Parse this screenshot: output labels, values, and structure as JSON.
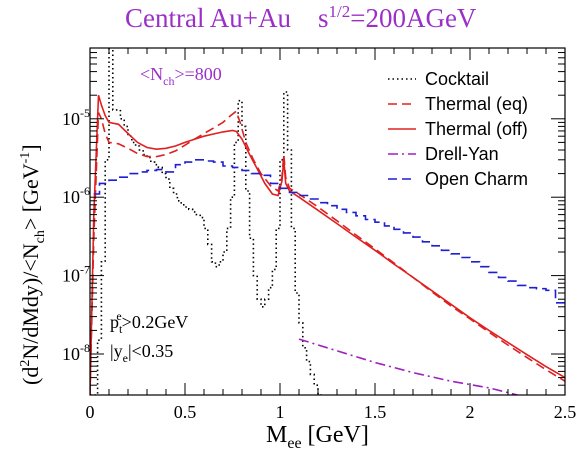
{
  "chart_data": {
    "type": "line",
    "title": {
      "prefix": "Central Au+Au",
      "sqrt_s_base": "s",
      "sqrt_s_exp": "1/2",
      "sqrt_s_value": "=200AGeV"
    },
    "xlabel": {
      "main": "M",
      "sub": "ee",
      "unit": " [GeV]"
    },
    "ylabel": {
      "p1": "(d",
      "sup1": "2",
      "p2": "N/dMdy)/<N",
      "sub1": "ch",
      "p3": "> [GeV",
      "sup2": "-1",
      "p4": "]"
    },
    "xlim": [
      0,
      2.5
    ],
    "ylim": [
      3e-09,
      8e-05
    ],
    "yscale": "log",
    "x_ticks": [
      {
        "v": 0,
        "label": "0"
      },
      {
        "v": 0.5,
        "label": "0.5"
      },
      {
        "v": 1,
        "label": "1"
      },
      {
        "v": 1.5,
        "label": "1.5"
      },
      {
        "v": 2,
        "label": "2"
      },
      {
        "v": 2.5,
        "label": "2.5"
      }
    ],
    "y_ticks": [
      {
        "v": 1e-08,
        "base": "10",
        "exp": "-8"
      },
      {
        "v": 1e-07,
        "base": "10",
        "exp": "-7"
      },
      {
        "v": 1e-06,
        "base": "10",
        "exp": "-6"
      },
      {
        "v": 1e-05,
        "base": "10",
        "exp": "-5"
      }
    ],
    "legend_position": "top-right",
    "annotations": {
      "nch": {
        "p1": "<N",
        "sub": "ch",
        "p2": ">=800",
        "color": "#9b30c8"
      },
      "pt": {
        "p1": "p",
        "sub": "t",
        "sup": "e",
        "p2": ">0.2GeV",
        "color": "#000000"
      },
      "ye": {
        "p1": "|y",
        "sub": "e",
        "p2": "|<0.35",
        "color": "#000000"
      }
    },
    "series": [
      {
        "name": "Cocktail",
        "color": "#000000",
        "style": "dotted",
        "step": true,
        "points": [
          [
            0.0,
            3e-09
          ],
          [
            0.02,
            3e-09
          ],
          [
            0.04,
            1.5e-08
          ],
          [
            0.06,
            1.5e-07
          ],
          [
            0.08,
            3e-06
          ],
          [
            0.1,
            0.0001
          ],
          [
            0.12,
            1.3e-05
          ],
          [
            0.14,
            1.3e-05
          ],
          [
            0.16,
            1e-05
          ],
          [
            0.18,
            8e-06
          ],
          [
            0.2,
            6e-06
          ],
          [
            0.22,
            5e-06
          ],
          [
            0.24,
            4.5e-06
          ],
          [
            0.26,
            4e-06
          ],
          [
            0.28,
            3.5e-06
          ],
          [
            0.3,
            3.2e-06
          ],
          [
            0.32,
            2.8e-06
          ],
          [
            0.34,
            2.6e-06
          ],
          [
            0.36,
            2.4e-06
          ],
          [
            0.38,
            2e-06
          ],
          [
            0.4,
            1.7e-06
          ],
          [
            0.42,
            1.3e-06
          ],
          [
            0.44,
            1.1e-06
          ],
          [
            0.46,
            9e-07
          ],
          [
            0.48,
            8e-07
          ],
          [
            0.5,
            7.5e-07
          ],
          [
            0.52,
            7e-07
          ],
          [
            0.54,
            6.5e-07
          ],
          [
            0.56,
            6e-07
          ],
          [
            0.58,
            5.5e-07
          ],
          [
            0.6,
            4e-07
          ],
          [
            0.62,
            2.5e-07
          ],
          [
            0.64,
            1.5e-07
          ],
          [
            0.66,
            1.3e-07
          ],
          [
            0.68,
            1.5e-07
          ],
          [
            0.7,
            2e-07
          ],
          [
            0.72,
            4e-07
          ],
          [
            0.74,
            1e-06
          ],
          [
            0.76,
            5e-06
          ],
          [
            0.78,
            1.7e-05
          ],
          [
            0.8,
            8e-06
          ],
          [
            0.82,
            1.2e-06
          ],
          [
            0.84,
            3e-07
          ],
          [
            0.86,
            1e-07
          ],
          [
            0.88,
            5e-08
          ],
          [
            0.9,
            4e-08
          ],
          [
            0.92,
            5e-08
          ],
          [
            0.94,
            7e-08
          ],
          [
            0.96,
            1.2e-07
          ],
          [
            0.98,
            4e-07
          ],
          [
            1.0,
            3e-06
          ],
          [
            1.02,
            2.2e-05
          ],
          [
            1.04,
            4e-06
          ],
          [
            1.06,
            4e-07
          ],
          [
            1.08,
            6e-08
          ],
          [
            1.1,
            2.5e-08
          ],
          [
            1.12,
            1.2e-08
          ],
          [
            1.14,
            8e-09
          ],
          [
            1.16,
            5.5e-09
          ],
          [
            1.18,
            4e-09
          ],
          [
            1.2,
            3e-09
          ]
        ]
      },
      {
        "name": "Thermal (eq)",
        "color": "#e02020",
        "style": "dashed",
        "step": false,
        "points": [
          [
            0.0,
            3e-09
          ],
          [
            0.02,
            3e-07
          ],
          [
            0.045,
            1.2e-05
          ],
          [
            0.06,
            1e-05
          ],
          [
            0.08,
            6.5e-06
          ],
          [
            0.1,
            5e-06
          ],
          [
            0.15,
            4.8e-06
          ],
          [
            0.2,
            4.2e-06
          ],
          [
            0.25,
            3.6e-06
          ],
          [
            0.3,
            3.3e-06
          ],
          [
            0.35,
            3.3e-06
          ],
          [
            0.4,
            3.5e-06
          ],
          [
            0.45,
            3.9e-06
          ],
          [
            0.5,
            4.6e-06
          ],
          [
            0.55,
            5.5e-06
          ],
          [
            0.6,
            6.5e-06
          ],
          [
            0.65,
            7.6e-06
          ],
          [
            0.7,
            9e-06
          ],
          [
            0.74,
            1.1e-05
          ],
          [
            0.77,
            1.25e-05
          ],
          [
            0.79,
            9e-06
          ],
          [
            0.82,
            5e-06
          ],
          [
            0.86,
            3e-06
          ],
          [
            0.9,
            2e-06
          ],
          [
            0.95,
            1.4e-06
          ],
          [
            0.99,
            1.2e-06
          ],
          [
            1.01,
            1.8e-06
          ],
          [
            1.02,
            3.5e-06
          ],
          [
            1.03,
            1.8e-06
          ],
          [
            1.05,
            1.3e-06
          ],
          [
            1.1,
            1.1e-06
          ],
          [
            1.2,
            7.5e-07
          ],
          [
            1.3,
            5e-07
          ],
          [
            1.4,
            3.3e-07
          ],
          [
            1.5,
            2.2e-07
          ],
          [
            1.6,
            1.45e-07
          ],
          [
            1.7,
            9.5e-08
          ],
          [
            1.8,
            6.2e-08
          ],
          [
            1.9,
            4.1e-08
          ],
          [
            2.0,
            2.8e-08
          ],
          [
            2.1,
            1.9e-08
          ],
          [
            2.2,
            1.3e-08
          ],
          [
            2.3,
            9e-09
          ],
          [
            2.4,
            6.3e-09
          ],
          [
            2.5,
            4.5e-09
          ]
        ]
      },
      {
        "name": "Thermal (off)",
        "color": "#e02020",
        "style": "solid",
        "step": false,
        "points": [
          [
            0.0,
            3e-09
          ],
          [
            0.02,
            6e-07
          ],
          [
            0.045,
            2e-05
          ],
          [
            0.06,
            1.5e-05
          ],
          [
            0.08,
            1.1e-05
          ],
          [
            0.1,
            9e-06
          ],
          [
            0.15,
            8.5e-06
          ],
          [
            0.2,
            6.5e-06
          ],
          [
            0.25,
            5e-06
          ],
          [
            0.3,
            4.3e-06
          ],
          [
            0.35,
            4.1e-06
          ],
          [
            0.4,
            4.2e-06
          ],
          [
            0.45,
            4.5e-06
          ],
          [
            0.5,
            5e-06
          ],
          [
            0.55,
            5.5e-06
          ],
          [
            0.6,
            6e-06
          ],
          [
            0.65,
            6.4e-06
          ],
          [
            0.7,
            6.8e-06
          ],
          [
            0.75,
            7.1e-06
          ],
          [
            0.77,
            6.9e-06
          ],
          [
            0.8,
            5.5e-06
          ],
          [
            0.84,
            3.5e-06
          ],
          [
            0.88,
            2.3e-06
          ],
          [
            0.92,
            1.5e-06
          ],
          [
            0.96,
            1.1e-06
          ],
          [
            0.99,
            1.05e-06
          ],
          [
            1.01,
            1.6e-06
          ],
          [
            1.02,
            3e-06
          ],
          [
            1.03,
            1.5e-06
          ],
          [
            1.05,
            1.2e-06
          ],
          [
            1.1,
            1e-06
          ],
          [
            1.2,
            6.8e-07
          ],
          [
            1.3,
            4.6e-07
          ],
          [
            1.4,
            3.1e-07
          ],
          [
            1.5,
            2.1e-07
          ],
          [
            1.6,
            1.4e-07
          ],
          [
            1.7,
            9.5e-08
          ],
          [
            1.8,
            6.4e-08
          ],
          [
            1.9,
            4.3e-08
          ],
          [
            2.0,
            2.9e-08
          ],
          [
            2.1,
            2e-08
          ],
          [
            2.2,
            1.4e-08
          ],
          [
            2.3,
            9.8e-09
          ],
          [
            2.4,
            6.9e-09
          ],
          [
            2.5,
            5e-09
          ]
        ]
      },
      {
        "name": "Drell-Yan",
        "color": "#a020c0",
        "style": "dashdot",
        "step": false,
        "points": [
          [
            1.1,
            1.55e-08
          ],
          [
            1.3,
            1.1e-08
          ],
          [
            1.5,
            7.8e-09
          ],
          [
            1.7,
            5.8e-09
          ],
          [
            1.9,
            4.5e-09
          ],
          [
            2.1,
            3.7e-09
          ],
          [
            2.25,
            3e-09
          ]
        ]
      },
      {
        "name": "Open Charm",
        "color": "#1e1ed2",
        "style": "dashed",
        "step": true,
        "points": [
          [
            0.02,
            1.1e-06
          ],
          [
            0.05,
            1.5e-06
          ],
          [
            0.1,
            1.65e-06
          ],
          [
            0.15,
            1.8e-06
          ],
          [
            0.2,
            2e-06
          ],
          [
            0.25,
            2.1e-06
          ],
          [
            0.3,
            2.2e-06
          ],
          [
            0.35,
            2.25e-06
          ],
          [
            0.4,
            2.1e-06
          ],
          [
            0.45,
            2.6e-06
          ],
          [
            0.5,
            2.8e-06
          ],
          [
            0.55,
            3e-06
          ],
          [
            0.6,
            2.9e-06
          ],
          [
            0.65,
            2.8e-06
          ],
          [
            0.7,
            2.5e-06
          ],
          [
            0.75,
            2.4e-06
          ],
          [
            0.8,
            2.2e-06
          ],
          [
            0.85,
            2e-06
          ],
          [
            0.9,
            1.9e-06
          ],
          [
            0.95,
            1.5e-06
          ],
          [
            1.0,
            1.3e-06
          ],
          [
            1.05,
            1.15e-06
          ],
          [
            1.1,
            1.05e-06
          ],
          [
            1.15,
            9.5e-07
          ],
          [
            1.2,
            8.5e-07
          ],
          [
            1.25,
            7.8e-07
          ],
          [
            1.3,
            7e-07
          ],
          [
            1.35,
            6.4e-07
          ],
          [
            1.4,
            5.8e-07
          ],
          [
            1.45,
            5.2e-07
          ],
          [
            1.5,
            4.8e-07
          ],
          [
            1.55,
            4.3e-07
          ],
          [
            1.6,
            3.9e-07
          ],
          [
            1.65,
            3.5e-07
          ],
          [
            1.7,
            3.1e-07
          ],
          [
            1.75,
            2.7e-07
          ],
          [
            1.8,
            2.4e-07
          ],
          [
            1.85,
            2.1e-07
          ],
          [
            1.9,
            1.9e-07
          ],
          [
            1.95,
            1.7e-07
          ],
          [
            2.0,
            1.5e-07
          ],
          [
            2.05,
            1.3e-07
          ],
          [
            2.1,
            1.1e-07
          ],
          [
            2.15,
            9.5e-08
          ],
          [
            2.2,
            8.5e-08
          ],
          [
            2.25,
            7.5e-08
          ],
          [
            2.3,
            7e-08
          ],
          [
            2.35,
            6.8e-08
          ],
          [
            2.4,
            6.5e-08
          ],
          [
            2.45,
            4.5e-08
          ],
          [
            2.5,
            4.5e-08
          ]
        ]
      }
    ]
  }
}
